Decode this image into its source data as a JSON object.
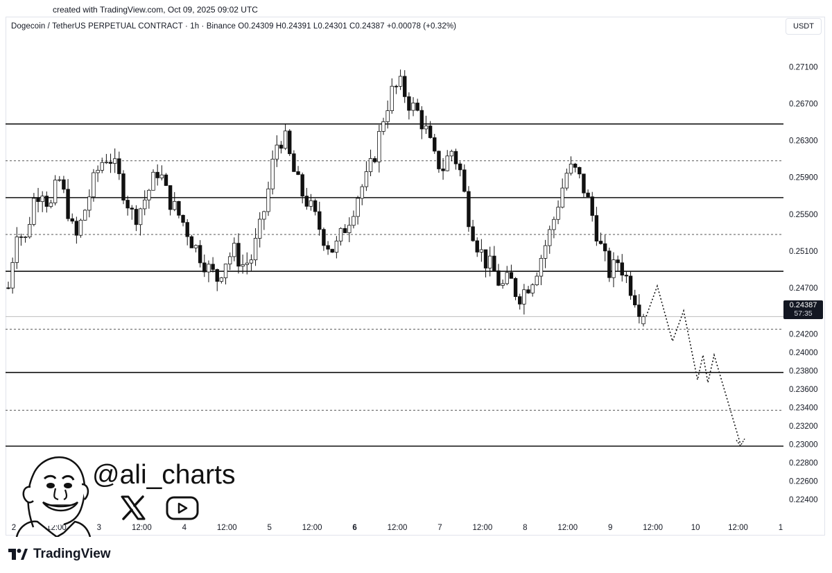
{
  "created_text": "created with TradingView.com, Oct 09, 2025 09:02 UTC",
  "symbol_line": "Dogecoin / TetherUS PERPETUAL CONTRACT · 1h · Binance  O0.24309  H0.24391  L0.24301  C0.24387  +0.00078 (+0.32%)",
  "currency": "USDT",
  "last_price": {
    "value": "0.24387",
    "countdown": "57:35",
    "numeric": 0.24387
  },
  "watermark": {
    "handle": "@ali_charts",
    "icons": [
      "x-icon",
      "youtube-icon",
      "avatar-cartoon"
    ]
  },
  "footer_brand": "TradingView",
  "chart_data": {
    "type": "candlestick",
    "title": "Dogecoin / TetherUS PERPETUAL CONTRACT · 1h · Binance",
    "xlabel": "",
    "ylabel": "",
    "ylim": [
      0.2225,
      0.2745
    ],
    "y_ticks": [
      "0.27100",
      "0.26700",
      "0.26300",
      "0.25900",
      "0.25500",
      "0.25100",
      "0.24700",
      "0.24200",
      "0.24000",
      "0.23800",
      "0.23600",
      "0.23400",
      "0.23200",
      "0.23000",
      "0.22800",
      "0.22600",
      "0.22400"
    ],
    "x_ticks": [
      "2",
      "12:00",
      "3",
      "12:00",
      "4",
      "12:00",
      "5",
      "12:00",
      "6",
      "12:00",
      "7",
      "12:00",
      "8",
      "12:00",
      "9",
      "12:00",
      "10",
      "12:00",
      "1"
    ],
    "bold_x_tick": "6",
    "horizontal_levels_solid": [
      0.2648,
      0.2568,
      0.2488,
      0.2378,
      0.2298
    ],
    "horizontal_levels_dashed": [
      0.2608,
      0.2528,
      0.2425,
      0.2337
    ],
    "close_path": [
      0.247,
      0.2535,
      0.252,
      0.2565,
      0.258,
      0.2555,
      0.259,
      0.256,
      0.252,
      0.255,
      0.258,
      0.2605,
      0.2615,
      0.2595,
      0.257,
      0.2545,
      0.256,
      0.258,
      0.26,
      0.257,
      0.2555,
      0.254,
      0.252,
      0.2505,
      0.249,
      0.248,
      0.25,
      0.251,
      0.2495,
      0.25,
      0.253,
      0.257,
      0.2625,
      0.2635,
      0.26,
      0.2575,
      0.256,
      0.254,
      0.252,
      0.251,
      0.253,
      0.255,
      0.2575,
      0.259,
      0.262,
      0.266,
      0.2685,
      0.269,
      0.267,
      0.266,
      0.264,
      0.261,
      0.26,
      0.262,
      0.26,
      0.255,
      0.252,
      0.25,
      0.249,
      0.247,
      0.248,
      0.246,
      0.247,
      0.2485,
      0.251,
      0.2535,
      0.257,
      0.26,
      0.2595,
      0.2575,
      0.2545,
      0.251,
      0.2485,
      0.25,
      0.248,
      0.246,
      0.2439
    ],
    "projection": [
      [
        0.2439,
        0.2439
      ],
      [
        0.2472,
        0.2472
      ],
      [
        0.2412,
        0.2412
      ],
      [
        0.2445,
        0.2445
      ],
      [
        0.237,
        0.237
      ],
      [
        0.2397,
        0.2397
      ],
      [
        0.2367,
        0.2367
      ],
      [
        0.2397,
        0.2397
      ],
      [
        0.23,
        0.23
      ]
    ]
  }
}
